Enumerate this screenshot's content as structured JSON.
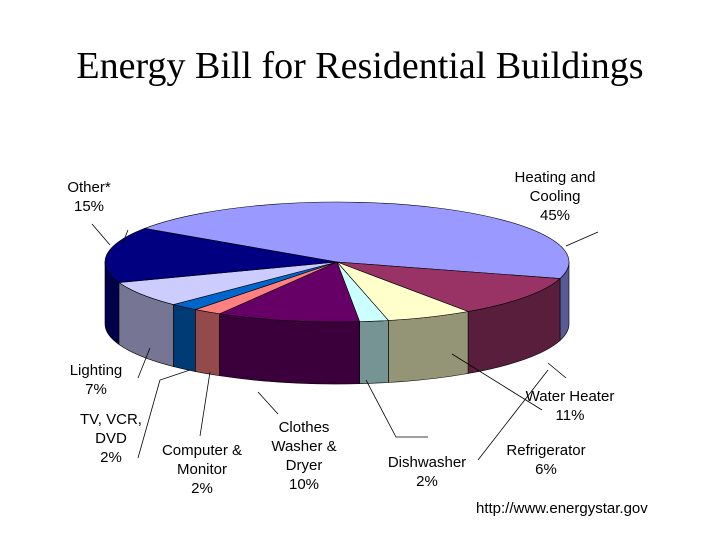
{
  "chart_data": {
    "type": "pie",
    "title": "Energy Bill for Residential Buildings",
    "slices": [
      {
        "label": "Heating and\nCooling",
        "pct_label": "45%",
        "value": 45,
        "color": "#9999ff"
      },
      {
        "label": "Water Heater",
        "pct_label": "11%",
        "value": 11,
        "color": "#993366"
      },
      {
        "label": "Refrigerator",
        "pct_label": "6%",
        "value": 6,
        "color": "#ffffcc"
      },
      {
        "label": "Dishwasher",
        "pct_label": "2%",
        "value": 2,
        "color": "#ccffff"
      },
      {
        "label": "Clothes\nWasher &\nDryer",
        "pct_label": "10%",
        "value": 10,
        "color": "#660066"
      },
      {
        "label": "Computer &\nMonitor",
        "pct_label": "2%",
        "value": 2,
        "color": "#ff8080"
      },
      {
        "label": "TV, VCR,\nDVD",
        "pct_label": "2%",
        "value": 2,
        "color": "#0066cc"
      },
      {
        "label": "Lighting",
        "pct_label": "7%",
        "value": 7,
        "color": "#ccccff"
      },
      {
        "label": "Other*",
        "pct_label": "15%",
        "value": 15,
        "color": "#000080"
      }
    ]
  },
  "source": "http://www.energystar.gov"
}
